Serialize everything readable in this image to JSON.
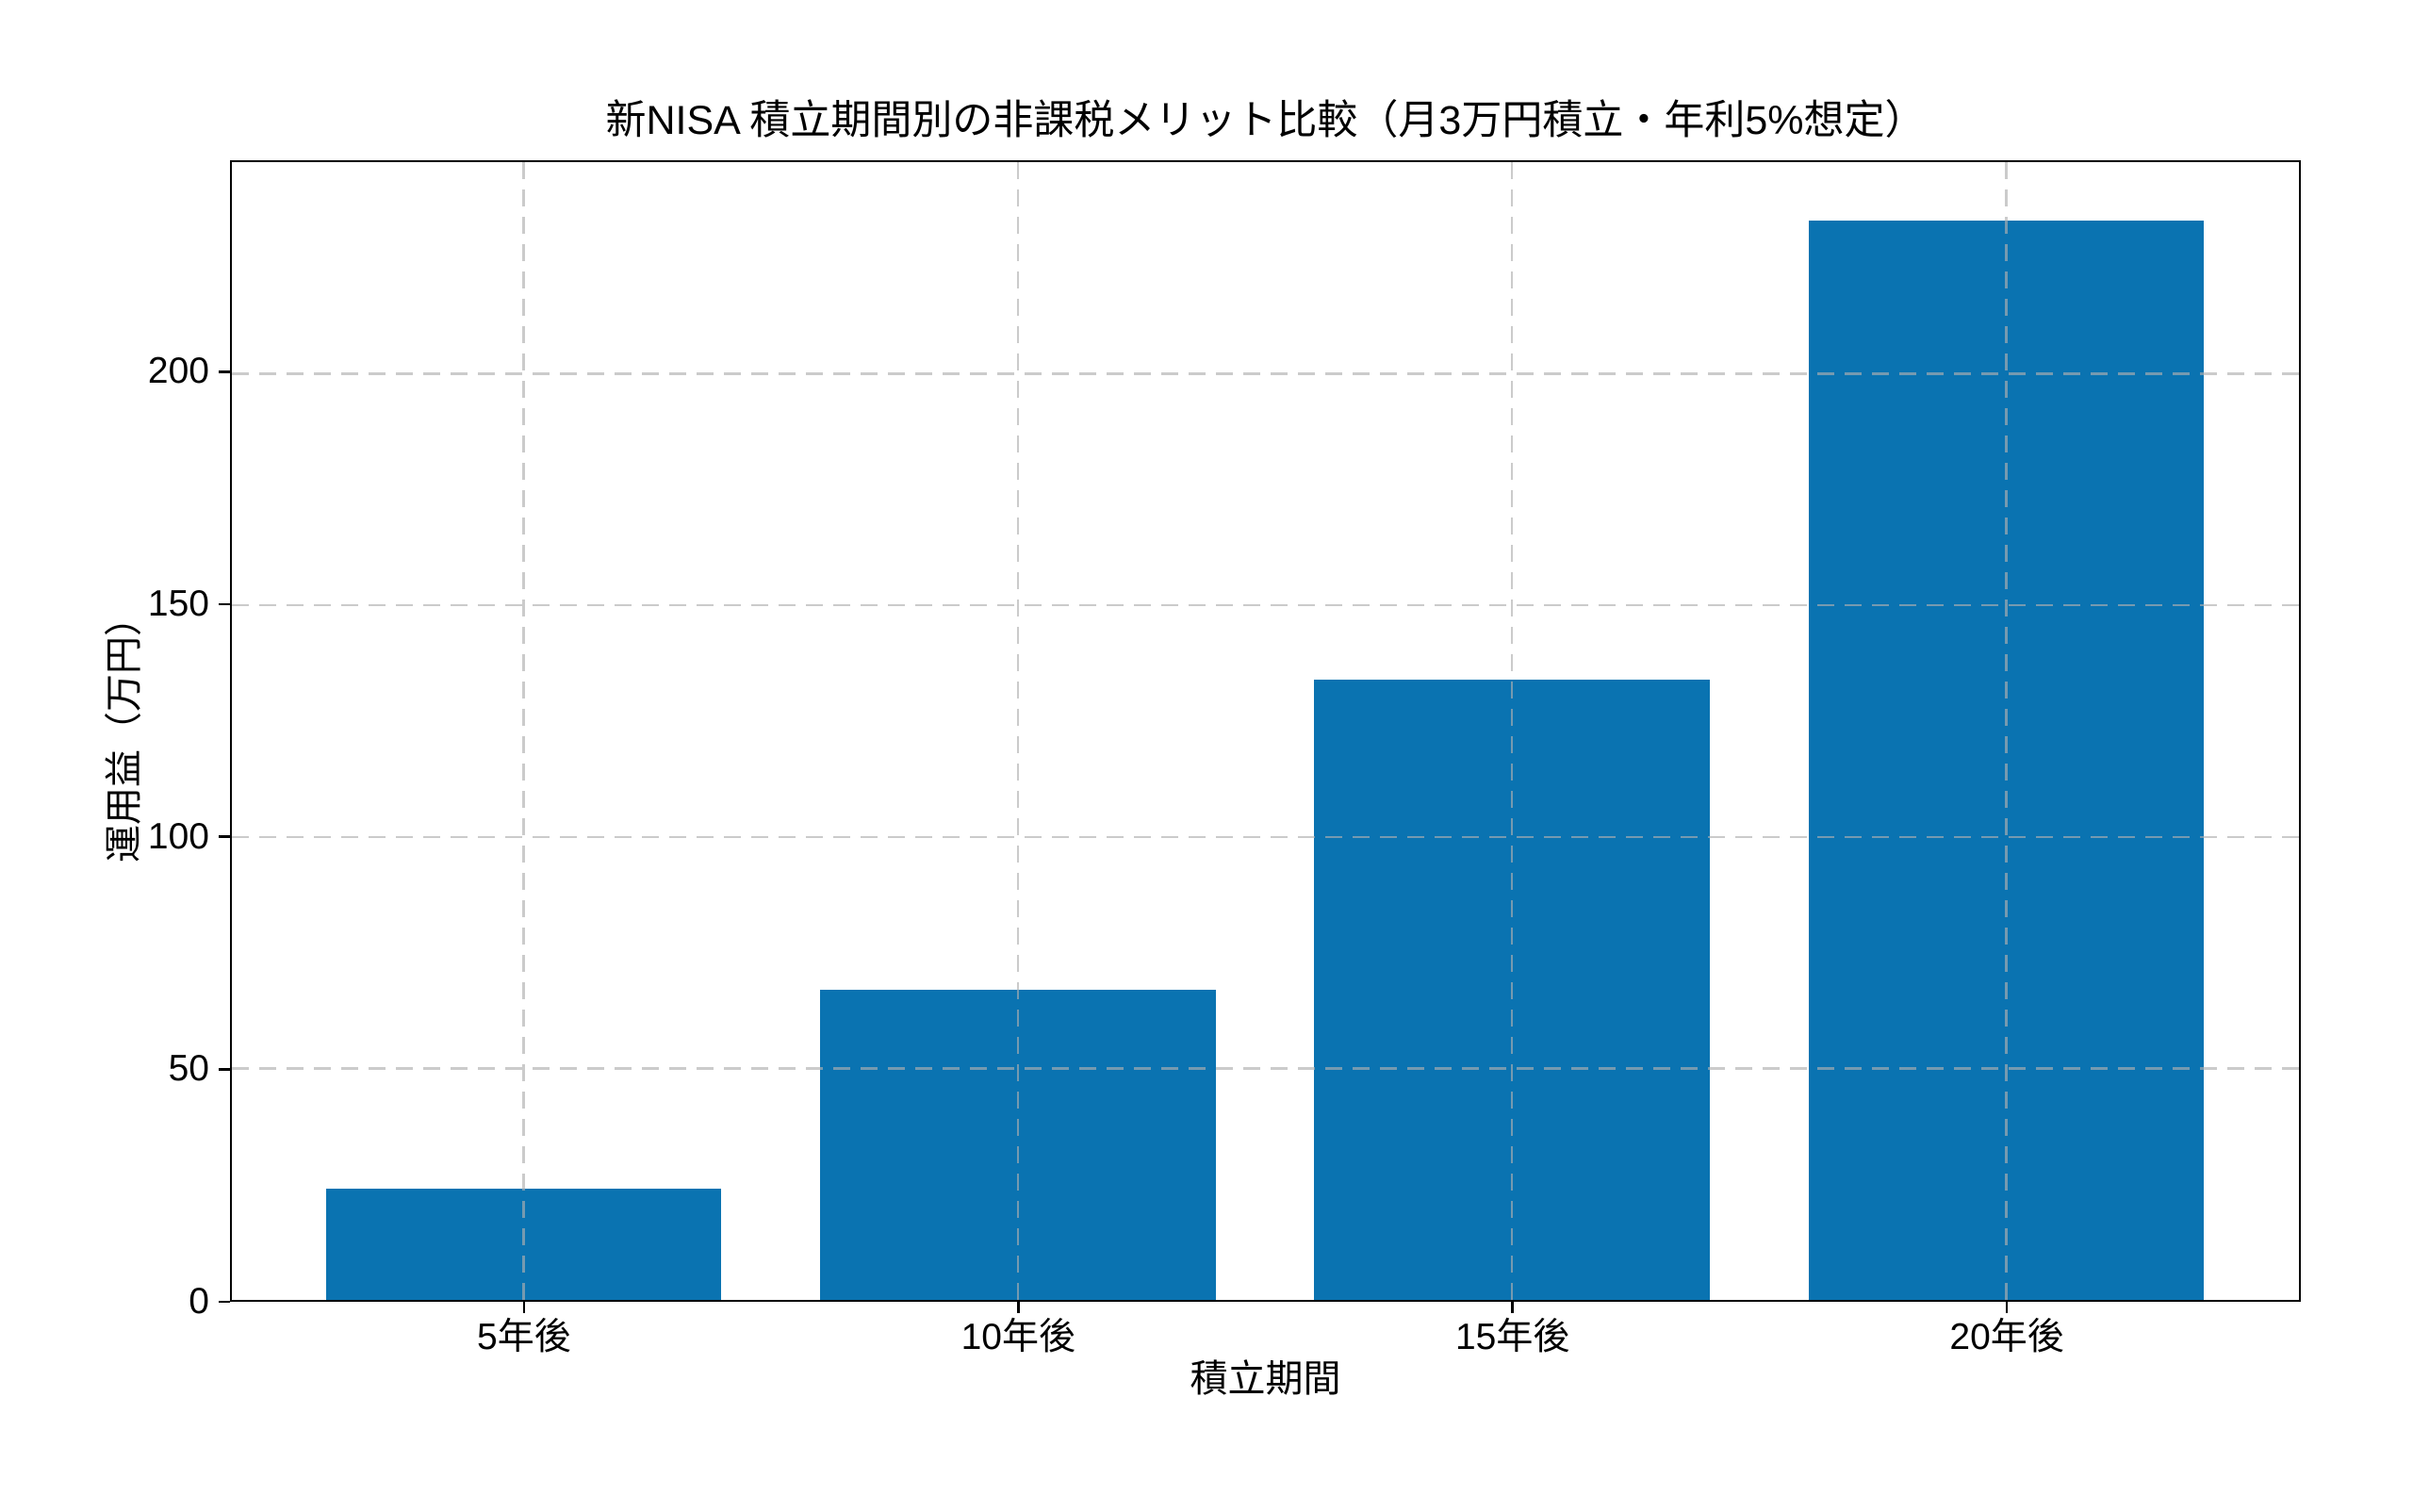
{
  "figure": {
    "background_color": "#ffffff",
    "spine_color": "#000000",
    "text_color": "#000000"
  },
  "chart_data": {
    "type": "bar",
    "title": "新NISA 積立期間別の非課税メリット比較（月3万円積立・年利5%想定）",
    "xlabel": "積立期間",
    "ylabel": "運用益（万円）",
    "categories": [
      "5年後",
      "10年後",
      "15年後",
      "20年後"
    ],
    "values": [
      24,
      67,
      134,
      233
    ],
    "ylim": [
      0,
      245.5
    ],
    "yticks": [
      0,
      50,
      100,
      150,
      200
    ],
    "bar_color": "#0a73b1",
    "grid": "dashed, both axes, drawn over bars",
    "gridline_color": "#c8c8c8",
    "legend": "none"
  }
}
